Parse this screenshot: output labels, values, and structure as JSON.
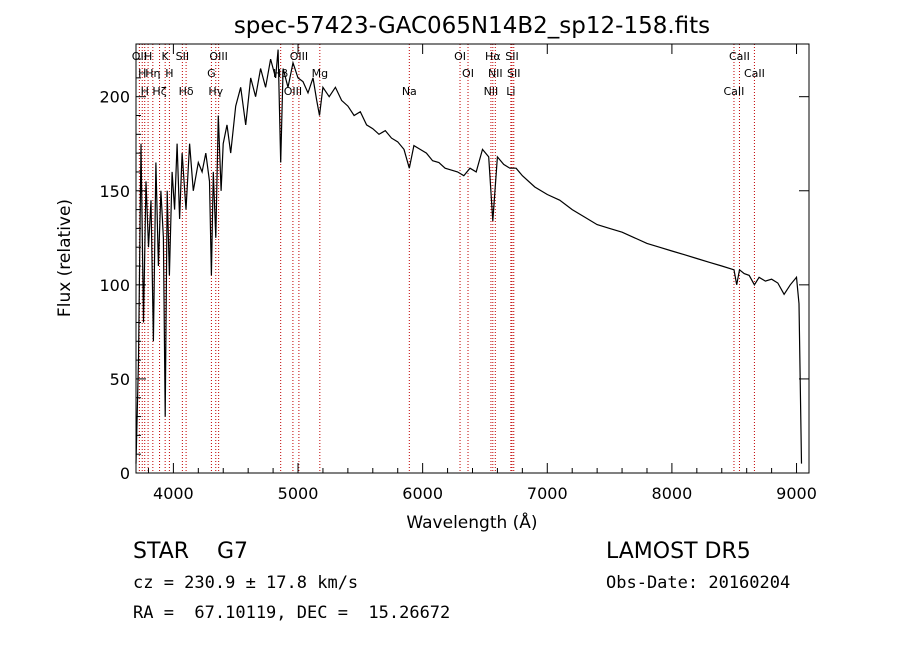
{
  "chart_data": {
    "type": "line",
    "title": "spec-57423-GAC065N14B2_sp12-158.fits",
    "xlabel": "Wavelength (Å)",
    "ylabel": "Flux (relative)",
    "xlim": [
      3700,
      9100
    ],
    "ylim": [
      0,
      228
    ],
    "x_ticks": [
      4000,
      5000,
      6000,
      7000,
      8000,
      9000
    ],
    "y_ticks": [
      0,
      50,
      100,
      150,
      200
    ],
    "grid": false,
    "line_color": "#000000",
    "marker_color": "#c00000",
    "series": [
      {
        "x": [
          3700,
          3720,
          3740,
          3760,
          3780,
          3800,
          3820,
          3840,
          3860,
          3880,
          3900,
          3920,
          3934,
          3950,
          3968,
          3990,
          4010,
          4030,
          4050,
          4070,
          4101,
          4130,
          4160,
          4200,
          4230,
          4260,
          4290,
          4305,
          4320,
          4340,
          4360,
          4383,
          4400,
          4430,
          4460,
          4500,
          4540,
          4580,
          4620,
          4660,
          4700,
          4740,
          4780,
          4820,
          4840,
          4861,
          4880,
          4920,
          4960,
          5000,
          5040,
          5080,
          5120,
          5150,
          5172,
          5200,
          5250,
          5300,
          5350,
          5400,
          5450,
          5500,
          5550,
          5600,
          5650,
          5700,
          5750,
          5800,
          5850,
          5893,
          5930,
          5980,
          6030,
          6080,
          6130,
          6180,
          6230,
          6280,
          6330,
          6380,
          6430,
          6480,
          6530,
          6563,
          6600,
          6650,
          6700,
          6750,
          6800,
          6900,
          7000,
          7100,
          7200,
          7300,
          7400,
          7500,
          7600,
          7700,
          7800,
          7900,
          8000,
          8100,
          8200,
          8300,
          8400,
          8498,
          8520,
          8542,
          8580,
          8620,
          8662,
          8700,
          8750,
          8800,
          8850,
          8900,
          8950,
          9000,
          9020,
          9040
        ],
        "y": [
          5,
          60,
          175,
          80,
          155,
          120,
          145,
          70,
          165,
          110,
          150,
          125,
          30,
          150,
          105,
          160,
          140,
          175,
          135,
          170,
          140,
          175,
          150,
          165,
          160,
          170,
          155,
          105,
          160,
          125,
          190,
          150,
          175,
          185,
          170,
          195,
          205,
          185,
          210,
          200,
          215,
          205,
          220,
          210,
          225,
          165,
          215,
          205,
          218,
          210,
          208,
          202,
          210,
          198,
          190,
          205,
          200,
          205,
          198,
          195,
          190,
          192,
          185,
          183,
          180,
          182,
          178,
          176,
          172,
          162,
          174,
          172,
          170,
          166,
          165,
          162,
          161,
          160,
          158,
          162,
          160,
          172,
          168,
          134,
          168,
          164,
          162,
          162,
          158,
          152,
          148,
          145,
          140,
          136,
          132,
          130,
          128,
          125,
          122,
          120,
          118,
          116,
          114,
          112,
          110,
          108,
          100,
          108,
          106,
          105,
          100,
          104,
          102,
          103,
          101,
          95,
          100,
          104,
          90,
          5
        ]
      }
    ],
    "line_markers": [
      {
        "x": 3727,
        "label": "OII"
      },
      {
        "x": 3750,
        "label": "H"
      },
      {
        "x": 3770,
        "label": "H"
      },
      {
        "x": 3797,
        "label": "H"
      },
      {
        "x": 3835,
        "label": "Hη"
      },
      {
        "x": 3889,
        "label": "Hζ"
      },
      {
        "x": 3934,
        "label": "K"
      },
      {
        "x": 3968,
        "label": "H"
      },
      {
        "x": 4102,
        "label": "Hδ"
      },
      {
        "x": 4072,
        "label": "SII"
      },
      {
        "x": 4305,
        "label": "G"
      },
      {
        "x": 4340,
        "label": "Hγ"
      },
      {
        "x": 4363,
        "label": "OIII"
      },
      {
        "x": 4861,
        "label": "Hβ"
      },
      {
        "x": 4959,
        "label": "OIII"
      },
      {
        "x": 5007,
        "label": "OIII"
      },
      {
        "x": 5175,
        "label": "Mg"
      },
      {
        "x": 5893,
        "label": "Na"
      },
      {
        "x": 6300,
        "label": "OI"
      },
      {
        "x": 6364,
        "label": "OI"
      },
      {
        "x": 6548,
        "label": "NII"
      },
      {
        "x": 6563,
        "label": "Hα"
      },
      {
        "x": 6583,
        "label": "NII"
      },
      {
        "x": 6708,
        "label": "Li"
      },
      {
        "x": 6717,
        "label": "SII"
      },
      {
        "x": 6731,
        "label": "SII"
      },
      {
        "x": 8498,
        "label": "CaII"
      },
      {
        "x": 8542,
        "label": "CaII"
      },
      {
        "x": 8662,
        "label": "CaII"
      }
    ]
  },
  "info": {
    "class_line": "STAR    G7",
    "survey": "LAMOST DR5",
    "cz": "cz = 230.9 ± 17.8 km/s",
    "obs_date": "Obs-Date: 20160204",
    "radec": "RA =  67.10119, DEC =  15.26672"
  }
}
